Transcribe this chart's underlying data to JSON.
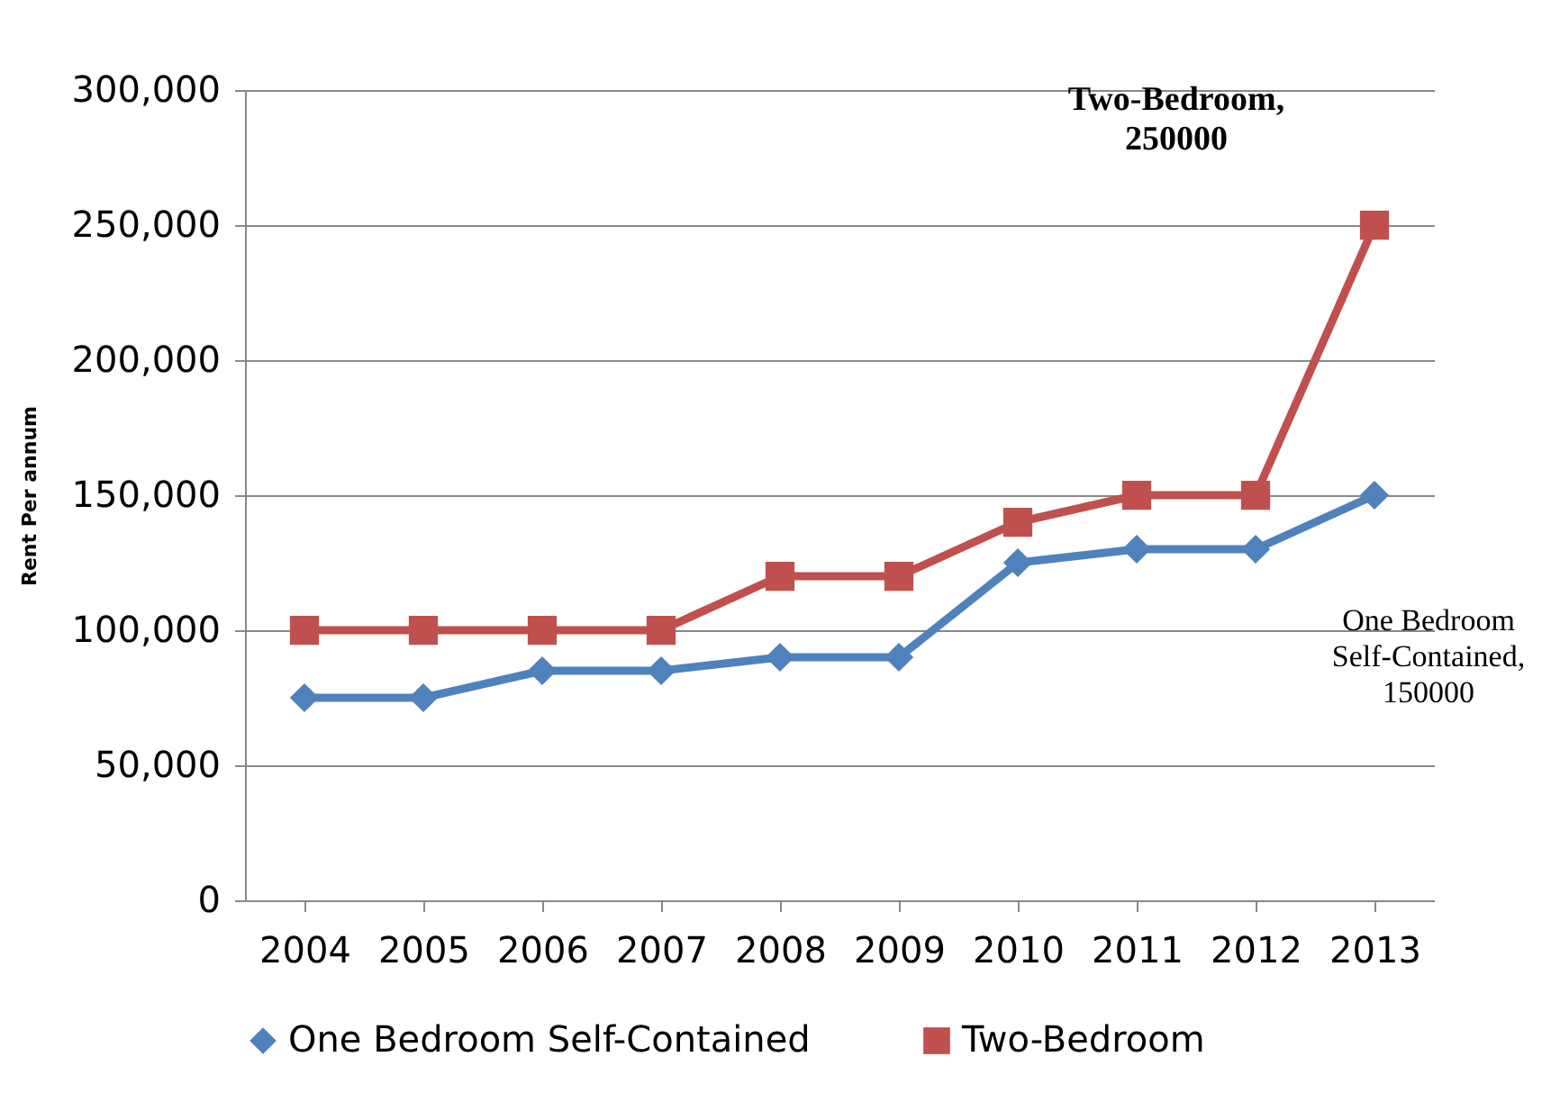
{
  "chart_data": {
    "type": "line",
    "ylabel": "Rent Per annum",
    "categories": [
      "2004",
      "2005",
      "2006",
      "2007",
      "2008",
      "2009",
      "2010",
      "2011",
      "2012",
      "2013"
    ],
    "series": [
      {
        "name": "One Bedroom Self-Contained",
        "color": "#4f81bd",
        "marker": "diamond",
        "values": [
          75000,
          75000,
          85000,
          85000,
          90000,
          90000,
          125000,
          130000,
          130000,
          150000
        ]
      },
      {
        "name": "Two-Bedroom",
        "color": "#c0504d",
        "marker": "square",
        "values": [
          100000,
          100000,
          100000,
          100000,
          120000,
          120000,
          140000,
          150000,
          150000,
          250000
        ]
      }
    ],
    "annotations": [
      "One Bedroom Self-Contained, 150000",
      "Two-Bedroom, 250000"
    ],
    "ylim": [
      0,
      300000
    ],
    "yticks": [
      0,
      {
        "value": 50000,
        "label": "50,000"
      },
      {
        "value": 100000,
        "label": "100,000"
      },
      {
        "value": 150000,
        "label": "150,000"
      },
      {
        "value": 200000,
        "label": "200,000"
      },
      {
        "value": 250000,
        "label": "250,000"
      },
      {
        "value": 300000,
        "label": "300,000"
      }
    ],
    "grid": "y",
    "legend": "bottom"
  }
}
